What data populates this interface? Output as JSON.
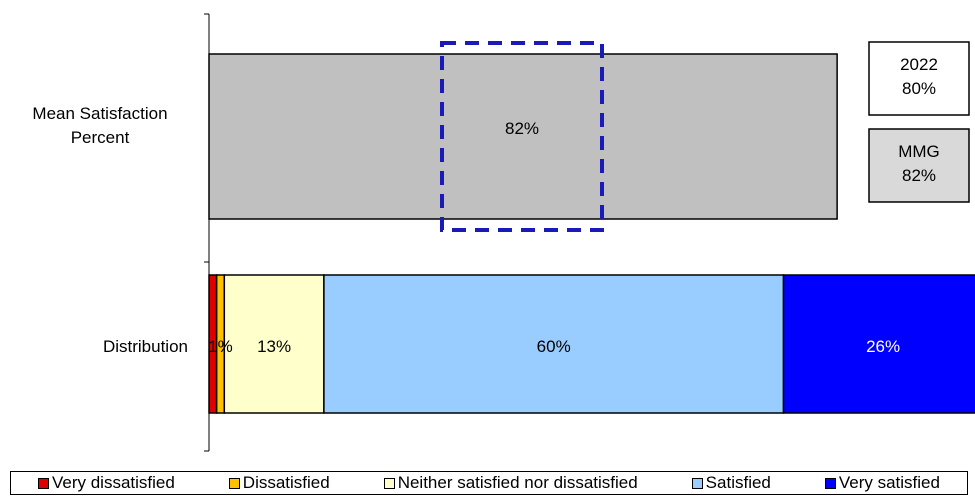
{
  "chart_data": {
    "type": "bar",
    "orientation": "horizontal",
    "categories": [
      "Mean Satisfaction Percent",
      "Distribution"
    ],
    "mean": {
      "value": 82,
      "label": "82%",
      "color": "#c0c0c0",
      "highlight": "dashed blue box"
    },
    "comparisons": [
      {
        "line1": "2022",
        "line2": "80%",
        "fill": "#ffffff"
      },
      {
        "line1": "MMG",
        "line2": "82%",
        "fill": "#d9d9d9"
      }
    ],
    "series": [
      {
        "name": "Very dissatisfied",
        "value": 1,
        "label": "",
        "color": "#e00000"
      },
      {
        "name": "Dissatisfied",
        "value": 1,
        "label": "1%",
        "color": "#ffc000"
      },
      {
        "name": "Neither satisfied nor dissatisfied",
        "value": 13,
        "label": "13%",
        "color": "#ffffcc"
      },
      {
        "name": "Satisfied",
        "value": 60,
        "label": "60%",
        "color": "#99ccff"
      },
      {
        "name": "Very satisfied",
        "value": 26,
        "label": "26%",
        "color": "#0000ff"
      }
    ],
    "xlim": [
      0,
      100
    ],
    "legend_position": "bottom"
  }
}
